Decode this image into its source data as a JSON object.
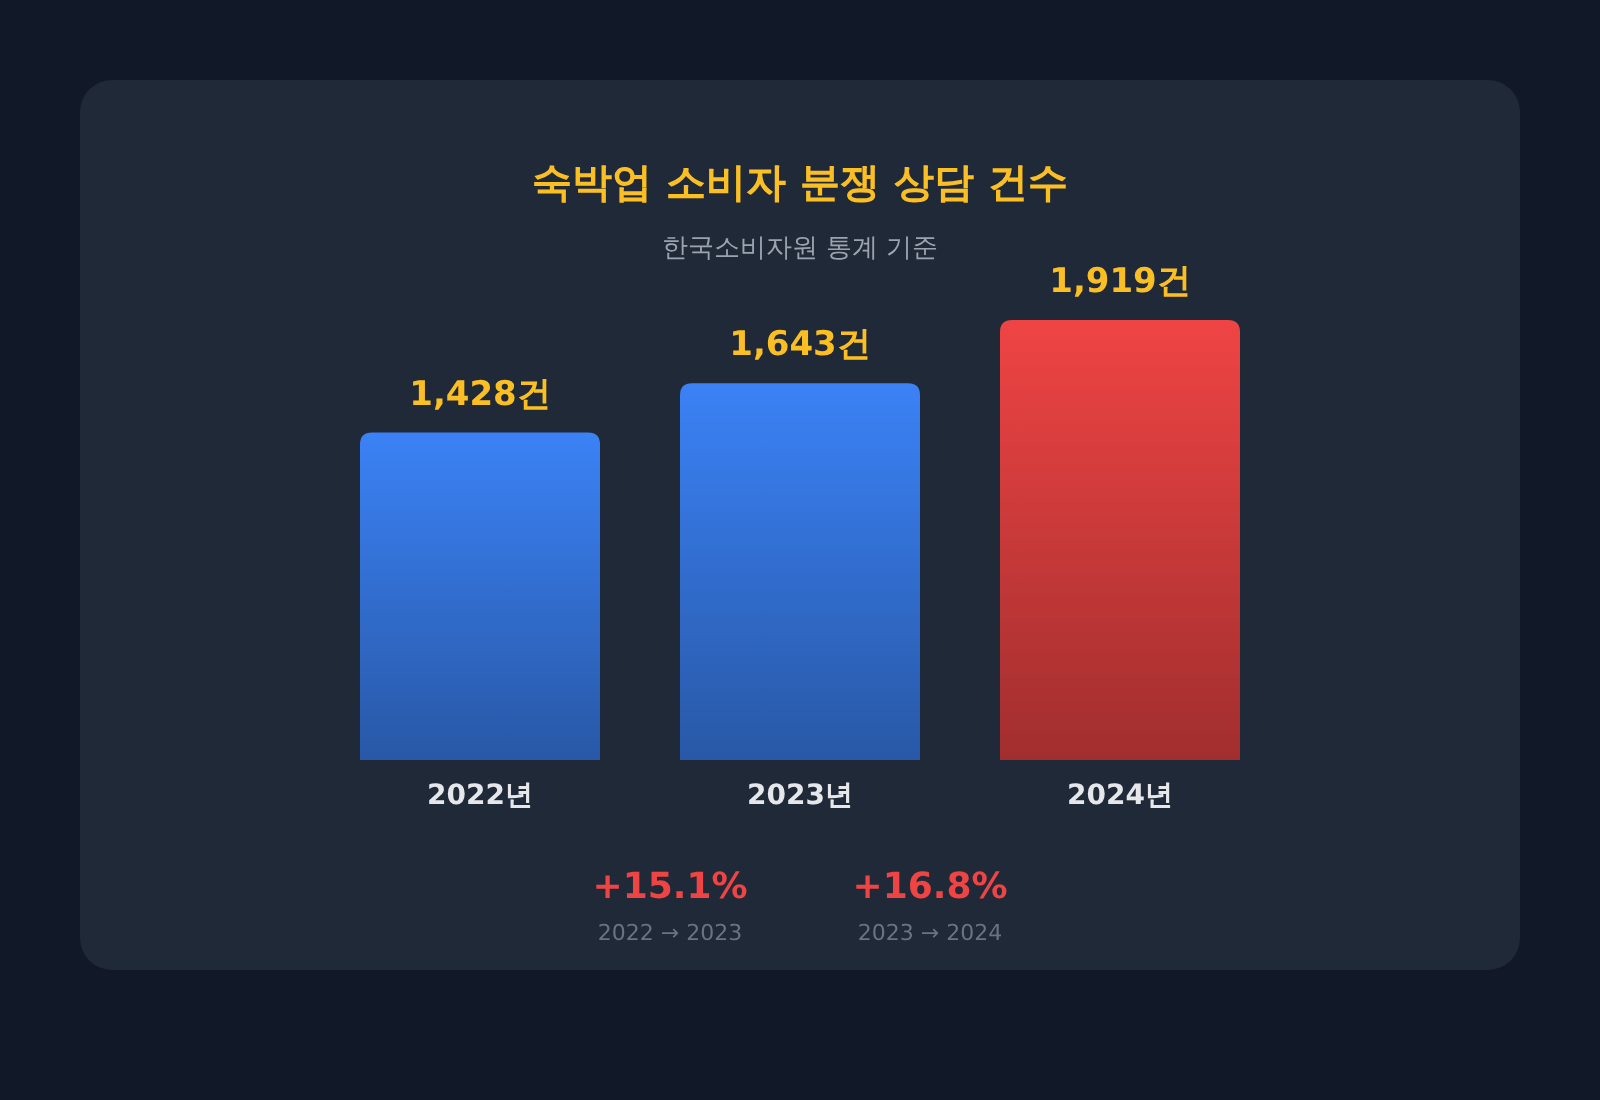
{
  "chart_data": {
    "type": "bar",
    "title": "숙박업 소비자 분쟁 상담 건수",
    "subtitle": "한국소비자원 통계 기준",
    "categories": [
      "2022년",
      "2023년",
      "2024년"
    ],
    "values": [
      1428,
      1643,
      1919
    ],
    "colors": [
      "#3b82f6",
      "#3b82f6",
      "#ef4444"
    ],
    "value_labels": [
      "1,428건",
      "1,643건",
      "1,919건"
    ],
    "annotations": [
      "+15.1%",
      "2022 → 2023",
      "+16.8%",
      "2023 → 2024"
    ]
  }
}
